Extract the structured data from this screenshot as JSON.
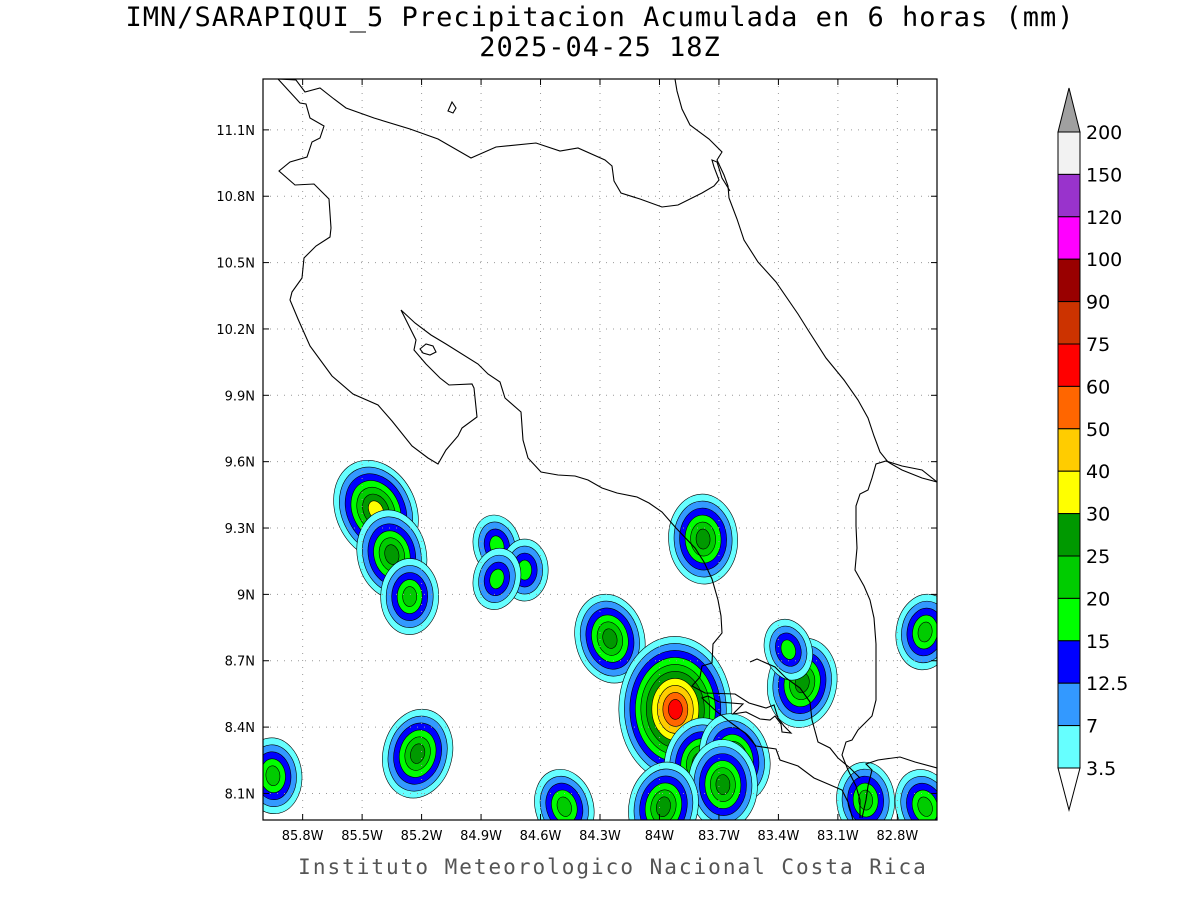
{
  "title": {
    "line1": "IMN/SARAPIQUI_5 Precipitacion Acumulada en 6 horas (mm)",
    "line2": "2025-04-25 18Z"
  },
  "credit": "Instituto Meteorologico Nacional Costa Rica",
  "map": {
    "lon_range": [
      -86.0,
      -82.6
    ],
    "lat_range": [
      7.98,
      11.33
    ],
    "lat_ticks": [
      "11.1N",
      "10.8N",
      "10.5N",
      "10.2N",
      "9.9N",
      "9.6N",
      "9.3N",
      "9N",
      "8.7N",
      "8.4N",
      "8.1N"
    ],
    "lon_ticks": [
      "85.8W",
      "85.5W",
      "85.2W",
      "84.9W",
      "84.6W",
      "84.3W",
      "84W",
      "83.7W",
      "83.4W",
      "83.1W",
      "82.8W"
    ],
    "grid": true,
    "grid_style": "dotted"
  },
  "colorbar": {
    "levels": [
      "3.5",
      "7",
      "12.5",
      "15",
      "20",
      "25",
      "30",
      "40",
      "50",
      "60",
      "75",
      "90",
      "100",
      "120",
      "150",
      "200"
    ],
    "colors": [
      "#66ffff",
      "#3399ff",
      "#0000ff",
      "#00ff00",
      "#00cc00",
      "#009900",
      "#ffff00",
      "#ffcc00",
      "#ff6600",
      "#ff0000",
      "#cc3300",
      "#990000",
      "#ff00ff",
      "#9933cc",
      "#f2f2f2",
      "#a0a0a0"
    ],
    "extend": "both"
  },
  "precip_cells": [
    {
      "lon": -85.43,
      "lat": 9.38,
      "peak": "30"
    },
    {
      "lon": -85.35,
      "lat": 9.18,
      "peak": "25"
    },
    {
      "lon": -85.26,
      "lat": 8.99,
      "peak": "20"
    },
    {
      "lon": -85.22,
      "lat": 8.28,
      "peak": "25"
    },
    {
      "lon": -84.82,
      "lat": 9.22,
      "peak": "15"
    },
    {
      "lon": -84.68,
      "lat": 9.11,
      "peak": "15"
    },
    {
      "lon": -84.82,
      "lat": 9.07,
      "peak": "15"
    },
    {
      "lon": -84.25,
      "lat": 8.8,
      "peak": "25"
    },
    {
      "lon": -83.92,
      "lat": 8.48,
      "peak": "60"
    },
    {
      "lon": -83.8,
      "lat": 8.24,
      "peak": "25"
    },
    {
      "lon": -83.62,
      "lat": 8.26,
      "peak": "25"
    },
    {
      "lon": -83.68,
      "lat": 8.14,
      "peak": "25"
    },
    {
      "lon": -83.98,
      "lat": 8.04,
      "peak": "25"
    },
    {
      "lon": -84.48,
      "lat": 8.04,
      "peak": "20"
    },
    {
      "lon": -83.78,
      "lat": 9.25,
      "peak": "25"
    },
    {
      "lon": -83.28,
      "lat": 8.6,
      "peak": "25"
    },
    {
      "lon": -83.35,
      "lat": 8.75,
      "peak": "15"
    },
    {
      "lon": -82.96,
      "lat": 8.07,
      "peak": "20"
    },
    {
      "lon": -82.66,
      "lat": 8.83,
      "peak": "20"
    },
    {
      "lon": -82.66,
      "lat": 8.04,
      "peak": "20"
    },
    {
      "lon": -85.95,
      "lat": 8.18,
      "peak": "20"
    }
  ]
}
